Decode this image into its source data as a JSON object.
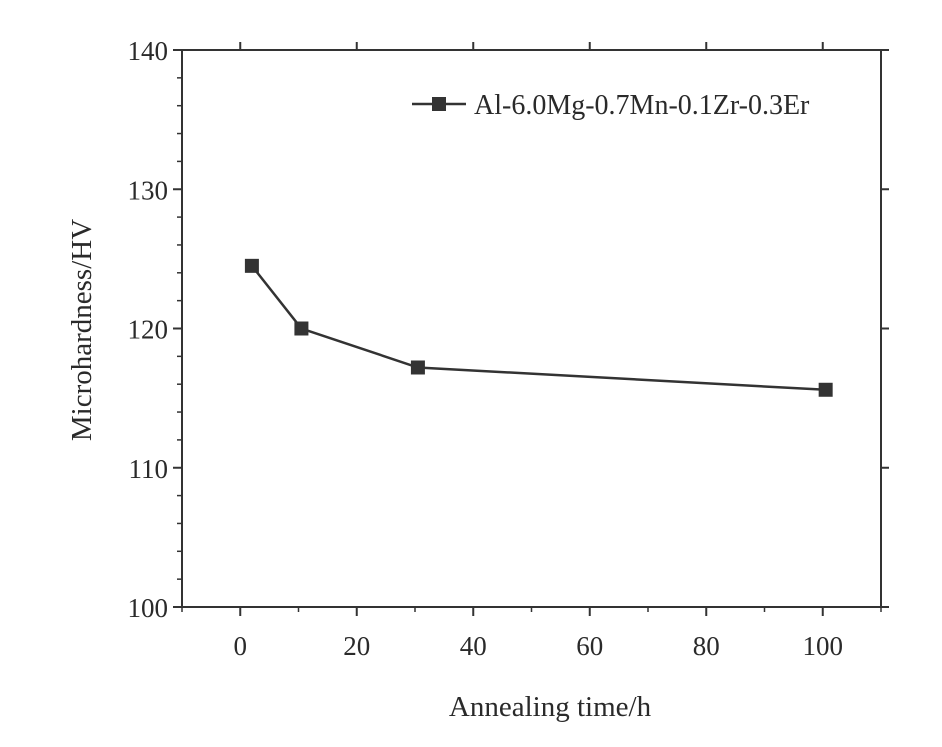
{
  "chart_data": {
    "type": "line",
    "xlabel": "Annealing time/h",
    "ylabel": "Microhardness/HV",
    "xlim": [
      -10,
      110
    ],
    "ylim": [
      100,
      140
    ],
    "xticks": [
      0,
      20,
      40,
      60,
      80,
      100
    ],
    "yticks": [
      100,
      110,
      120,
      130,
      140
    ],
    "x_minor_step": 10,
    "y_minor_step": 2,
    "grid": false,
    "legend_position": "top-right",
    "series": [
      {
        "name": "Al-6.0Mg-0.7Mn-0.1Zr-0.3Er",
        "marker": "square",
        "color": "#333333",
        "x": [
          2,
          10.5,
          30.5,
          100.5
        ],
        "y": [
          124.5,
          120,
          117.2,
          115.6
        ]
      }
    ]
  }
}
